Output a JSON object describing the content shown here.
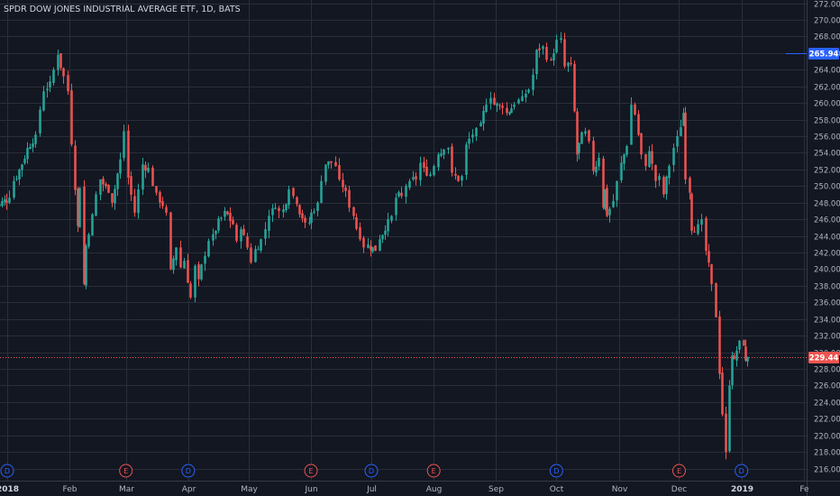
{
  "header": {
    "title": "SPDR DOW JONES INDUSTRIAL AVERAGE ETF, 1D, BATS"
  },
  "colors": {
    "background": "#131722",
    "grid": "#2a2e39",
    "up": "#26a69a",
    "down": "#ef5350",
    "price_tag": "#ef5350",
    "marker_tag": "#2962ff",
    "dividend": "#2962ff",
    "earnings": "#ef5350"
  },
  "chart_data": {
    "type": "candlestick",
    "title": "SPDR DOW JONES INDUSTRIAL AVERAGE ETF, 1D, BATS",
    "ylim": [
      214.6,
      272.4
    ],
    "y_ticks": [
      "216.00",
      "218.00",
      "220.00",
      "222.00",
      "224.00",
      "226.00",
      "228.00",
      "230.00",
      "232.00",
      "234.00",
      "236.00",
      "238.00",
      "240.00",
      "242.00",
      "244.00",
      "246.00",
      "248.00",
      "250.00",
      "252.00",
      "254.00",
      "256.00",
      "258.00",
      "260.00",
      "262.00",
      "264.00",
      "266.00",
      "268.00",
      "270.00",
      "272.00"
    ],
    "x_ticks": [
      {
        "label": "2018",
        "date": "2018-01-01",
        "bold": true
      },
      {
        "label": "Feb",
        "date": "2018-02-01",
        "bold": false
      },
      {
        "label": "Mar",
        "date": "2018-03-01",
        "bold": false
      },
      {
        "label": "Apr",
        "date": "2018-04-01",
        "bold": false
      },
      {
        "label": "May",
        "date": "2018-05-01",
        "bold": false
      },
      {
        "label": "Jun",
        "date": "2018-06-01",
        "bold": false
      },
      {
        "label": "Jul",
        "date": "2018-07-01",
        "bold": false
      },
      {
        "label": "Aug",
        "date": "2018-08-01",
        "bold": false
      },
      {
        "label": "Sep",
        "date": "2018-09-01",
        "bold": false
      },
      {
        "label": "Oct",
        "date": "2018-10-01",
        "bold": false
      },
      {
        "label": "Nov",
        "date": "2018-11-01",
        "bold": false
      },
      {
        "label": "Dec",
        "date": "2018-12-01",
        "bold": false
      },
      {
        "label": "2019",
        "date": "2019-01-01",
        "bold": true
      },
      {
        "label": "Fe",
        "date": "2019-02-01",
        "bold": false
      }
    ],
    "price_lines": [
      {
        "label": "265.94",
        "value": 265.94,
        "kind": "marker"
      },
      {
        "label": "229.44",
        "value": 229.44,
        "kind": "last"
      }
    ],
    "events": [
      {
        "label": "D",
        "date": "2018-01-01",
        "kind": "dividend"
      },
      {
        "label": "E",
        "date": "2018-03-01",
        "kind": "earnings"
      },
      {
        "label": "D",
        "date": "2018-04-01",
        "kind": "dividend"
      },
      {
        "label": "E",
        "date": "2018-06-01",
        "kind": "earnings"
      },
      {
        "label": "D",
        "date": "2018-07-01",
        "kind": "dividend"
      },
      {
        "label": "E",
        "date": "2018-08-01",
        "kind": "earnings"
      },
      {
        "label": "D",
        "date": "2018-10-01",
        "kind": "dividend"
      },
      {
        "label": "E",
        "date": "2018-12-01",
        "kind": "earnings"
      },
      {
        "label": "D",
        "date": "2019-01-01",
        "kind": "dividend"
      }
    ],
    "close_path": [
      [
        "2017-12-24",
        247.4
      ],
      [
        "2017-12-28",
        247.8
      ],
      [
        "2018-01-02",
        248.6
      ],
      [
        "2018-01-04",
        250.6
      ],
      [
        "2018-01-08",
        252.6
      ],
      [
        "2018-01-11",
        254.6
      ],
      [
        "2018-01-15",
        256.2
      ],
      [
        "2018-01-17",
        259.2
      ],
      [
        "2018-01-19",
        261.4
      ],
      [
        "2018-01-22",
        262.6
      ],
      [
        "2018-01-24",
        264.0
      ],
      [
        "2018-01-26",
        265.8
      ],
      [
        "2018-01-29",
        263.2
      ],
      [
        "2018-01-31",
        261.4
      ],
      [
        "2018-02-02",
        255.0
      ],
      [
        "2018-02-05",
        245.2
      ],
      [
        "2018-02-06",
        249.8
      ],
      [
        "2018-02-08",
        238.2
      ],
      [
        "2018-02-09",
        242.8
      ],
      [
        "2018-02-12",
        246.6
      ],
      [
        "2018-02-14",
        249.0
      ],
      [
        "2018-02-16",
        250.8
      ],
      [
        "2018-02-20",
        249.2
      ],
      [
        "2018-02-22",
        248.0
      ],
      [
        "2018-02-26",
        253.2
      ],
      [
        "2018-02-28",
        256.6
      ],
      [
        "2018-03-02",
        251.0
      ],
      [
        "2018-03-05",
        246.8
      ],
      [
        "2018-03-07",
        249.6
      ],
      [
        "2018-03-09",
        252.6
      ],
      [
        "2018-03-12",
        252.2
      ],
      [
        "2018-03-14",
        250.0
      ],
      [
        "2018-03-16",
        249.2
      ],
      [
        "2018-03-19",
        247.6
      ],
      [
        "2018-03-21",
        246.8
      ],
      [
        "2018-03-23",
        240.0
      ],
      [
        "2018-03-26",
        242.6
      ],
      [
        "2018-03-28",
        240.2
      ],
      [
        "2018-03-30",
        241.0
      ],
      [
        "2018-04-02",
        236.6
      ],
      [
        "2018-04-04",
        240.4
      ],
      [
        "2018-04-06",
        238.8
      ],
      [
        "2018-04-09",
        241.6
      ],
      [
        "2018-04-11",
        243.4
      ],
      [
        "2018-04-13",
        244.2
      ],
      [
        "2018-04-17",
        246.2
      ],
      [
        "2018-04-19",
        247.0
      ],
      [
        "2018-04-23",
        245.4
      ],
      [
        "2018-04-25",
        243.4
      ],
      [
        "2018-04-27",
        244.8
      ],
      [
        "2018-04-30",
        242.6
      ],
      [
        "2018-05-02",
        240.8
      ],
      [
        "2018-05-04",
        242.4
      ],
      [
        "2018-05-07",
        243.6
      ],
      [
        "2018-05-09",
        244.8
      ],
      [
        "2018-05-11",
        246.4
      ],
      [
        "2018-05-14",
        247.4
      ],
      [
        "2018-05-16",
        247.0
      ],
      [
        "2018-05-18",
        247.2
      ],
      [
        "2018-05-21",
        249.6
      ],
      [
        "2018-05-23",
        248.8
      ],
      [
        "2018-05-25",
        247.8
      ],
      [
        "2018-05-29",
        245.6
      ],
      [
        "2018-05-31",
        245.6
      ],
      [
        "2018-06-01",
        246.8
      ],
      [
        "2018-06-04",
        248.0
      ],
      [
        "2018-06-06",
        250.6
      ],
      [
        "2018-06-08",
        252.6
      ],
      [
        "2018-06-11",
        252.8
      ],
      [
        "2018-06-13",
        252.4
      ],
      [
        "2018-06-15",
        250.8
      ],
      [
        "2018-06-18",
        249.4
      ],
      [
        "2018-06-20",
        247.4
      ],
      [
        "2018-06-22",
        246.4
      ],
      [
        "2018-06-25",
        243.6
      ],
      [
        "2018-06-27",
        242.6
      ],
      [
        "2018-06-29",
        243.0
      ],
      [
        "2018-07-03",
        242.2
      ],
      [
        "2018-07-05",
        243.6
      ],
      [
        "2018-07-09",
        246.0
      ],
      [
        "2018-07-11",
        246.4
      ],
      [
        "2018-07-13",
        248.6
      ],
      [
        "2018-07-16",
        248.8
      ],
      [
        "2018-07-18",
        250.0
      ],
      [
        "2018-07-20",
        250.6
      ],
      [
        "2018-07-23",
        250.8
      ],
      [
        "2018-07-25",
        252.8
      ],
      [
        "2018-07-27",
        252.2
      ],
      [
        "2018-07-30",
        251.4
      ],
      [
        "2018-08-01",
        252.4
      ],
      [
        "2018-08-03",
        253.8
      ],
      [
        "2018-08-06",
        254.4
      ],
      [
        "2018-08-08",
        254.6
      ],
      [
        "2018-08-10",
        251.6
      ],
      [
        "2018-08-13",
        250.6
      ],
      [
        "2018-08-15",
        251.2
      ],
      [
        "2018-08-17",
        255.0
      ],
      [
        "2018-08-20",
        256.2
      ],
      [
        "2018-08-22",
        257.0
      ],
      [
        "2018-08-24",
        257.6
      ],
      [
        "2018-08-27",
        259.8
      ],
      [
        "2018-08-29",
        260.6
      ],
      [
        "2018-08-31",
        259.8
      ],
      [
        "2018-09-04",
        259.4
      ],
      [
        "2018-09-06",
        258.8
      ],
      [
        "2018-09-10",
        259.8
      ],
      [
        "2018-09-12",
        260.4
      ],
      [
        "2018-09-14",
        260.8
      ],
      [
        "2018-09-17",
        261.6
      ],
      [
        "2018-09-19",
        263.4
      ],
      [
        "2018-09-21",
        266.4
      ],
      [
        "2018-09-24",
        266.8
      ],
      [
        "2018-09-26",
        265.2
      ],
      [
        "2018-09-28",
        265.2
      ],
      [
        "2018-10-01",
        267.6
      ],
      [
        "2018-10-03",
        267.8
      ],
      [
        "2018-10-05",
        264.4
      ],
      [
        "2018-10-08",
        264.8
      ],
      [
        "2018-10-10",
        259.0
      ],
      [
        "2018-10-11",
        253.8
      ],
      [
        "2018-10-12",
        255.2
      ],
      [
        "2018-10-15",
        256.6
      ],
      [
        "2018-10-17",
        255.4
      ],
      [
        "2018-10-19",
        251.8
      ],
      [
        "2018-10-22",
        253.4
      ],
      [
        "2018-10-24",
        247.4
      ],
      [
        "2018-10-25",
        249.6
      ],
      [
        "2018-10-26",
        246.4
      ],
      [
        "2018-10-29",
        248.2
      ],
      [
        "2018-10-31",
        250.6
      ],
      [
        "2018-11-02",
        252.8
      ],
      [
        "2018-11-05",
        254.8
      ],
      [
        "2018-11-07",
        259.8
      ],
      [
        "2018-11-09",
        258.6
      ],
      [
        "2018-11-12",
        253.8
      ],
      [
        "2018-11-14",
        252.4
      ],
      [
        "2018-11-16",
        254.2
      ],
      [
        "2018-11-19",
        250.6
      ],
      [
        "2018-11-21",
        251.2
      ],
      [
        "2018-11-23",
        249.0
      ],
      [
        "2018-11-26",
        252.4
      ],
      [
        "2018-11-28",
        254.6
      ],
      [
        "2018-11-30",
        256.0
      ],
      [
        "2018-12-03",
        258.8
      ],
      [
        "2018-12-04",
        250.8
      ],
      [
        "2018-12-06",
        249.2
      ],
      [
        "2018-12-07",
        244.6
      ],
      [
        "2018-12-10",
        245.4
      ],
      [
        "2018-12-12",
        246.0
      ],
      [
        "2018-12-14",
        242.2
      ],
      [
        "2018-12-17",
        238.2
      ],
      [
        "2018-12-19",
        234.2
      ],
      [
        "2018-12-21",
        227.4
      ],
      [
        "2018-12-24",
        218.0
      ],
      [
        "2018-12-26",
        226.0
      ],
      [
        "2018-12-27",
        229.6
      ],
      [
        "2018-12-28",
        229.2
      ],
      [
        "2018-12-31",
        231.4
      ],
      [
        "2019-01-02",
        230.8
      ],
      [
        "2019-01-03",
        229.0
      ],
      [
        "2019-01-04",
        229.44
      ]
    ]
  }
}
